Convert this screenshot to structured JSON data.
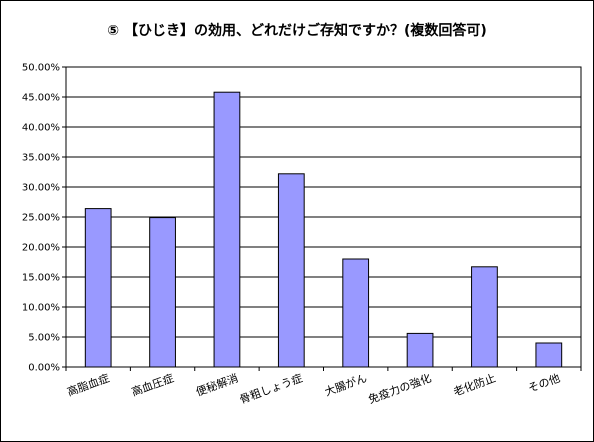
{
  "chart_data": {
    "type": "bar",
    "title": "⑤ 【ひじき】の効用、どれだけご存知ですか？(複数回答可)",
    "categories": [
      "高脂血症",
      "高血圧症",
      "便秘解消",
      "骨粗しょう症",
      "大腸がん",
      "免疫力の強化",
      "老化防止",
      "その他"
    ],
    "values": [
      0.264,
      0.249,
      0.458,
      0.322,
      0.18,
      0.056,
      0.167,
      0.04
    ],
    "ylim": [
      0,
      0.5
    ],
    "yticks": [
      "0.00%",
      "5.00%",
      "10.00%",
      "15.00%",
      "20.00%",
      "25.00%",
      "30.00%",
      "35.00%",
      "40.00%",
      "45.00%",
      "50.00%"
    ],
    "xlabel": "",
    "ylabel": "",
    "grid": true,
    "legend": "none",
    "colors": {
      "bar_fill": "#9999ff",
      "bar_stroke": "#000000",
      "grid": "#000000"
    }
  }
}
